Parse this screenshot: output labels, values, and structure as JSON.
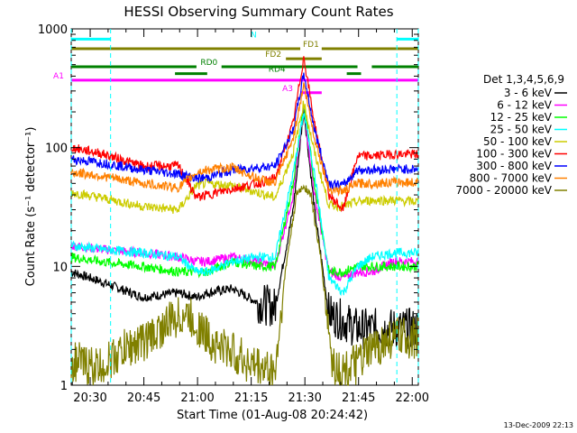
{
  "chart_data": {
    "type": "line",
    "title": "HESSI Observing Summary Count Rates",
    "xlabel": "Start Time (01-Aug-08 20:24:42)",
    "ylabel": "Count Rate (s⁻¹ detector⁻¹)",
    "ylog": true,
    "ylim": [
      1,
      1000
    ],
    "xlim_minutes": [
      0,
      97
    ],
    "x_ticks": [
      {
        "label": "20:30",
        "t": 5.3
      },
      {
        "label": "20:45",
        "t": 20.3
      },
      {
        "label": "21:00",
        "t": 35.3
      },
      {
        "label": "21:15",
        "t": 50.3
      },
      {
        "label": "21:30",
        "t": 65.3
      },
      {
        "label": "21:45",
        "t": 80.3
      },
      {
        "label": "22:00",
        "t": 95.3
      }
    ],
    "y_ticks": [
      {
        "label": "1",
        "v": 1
      },
      {
        "label": "10",
        "v": 10
      },
      {
        "label": "100",
        "v": 100
      },
      {
        "label": "1000",
        "v": 1000
      }
    ],
    "legend": {
      "title": "Det 1,3,4,5,6,9",
      "position": "right"
    },
    "series": [
      {
        "name": "3 - 6 keV",
        "color": "#000000",
        "points": [
          [
            0,
            9
          ],
          [
            8,
            7.5
          ],
          [
            20,
            5.5
          ],
          [
            30,
            6
          ],
          [
            35,
            5.5
          ],
          [
            38,
            6
          ],
          [
            45,
            6.5
          ],
          [
            52,
            5
          ],
          [
            57,
            4.5
          ],
          [
            62,
            30
          ],
          [
            65,
            210
          ],
          [
            68,
            30
          ],
          [
            72,
            4
          ],
          [
            76,
            3.5
          ],
          [
            80,
            3
          ],
          [
            84,
            3
          ],
          [
            90,
            3
          ],
          [
            97,
            3
          ]
        ]
      },
      {
        "name": "6 - 12 keV",
        "color": "#ff00ff",
        "points": [
          [
            0,
            15
          ],
          [
            8,
            14
          ],
          [
            20,
            13
          ],
          [
            30,
            12
          ],
          [
            35,
            11
          ],
          [
            38,
            11
          ],
          [
            45,
            12
          ],
          [
            52,
            11
          ],
          [
            57,
            10
          ],
          [
            62,
            40
          ],
          [
            65,
            220
          ],
          [
            68,
            40
          ],
          [
            72,
            9
          ],
          [
            76,
            8
          ],
          [
            80,
            9
          ],
          [
            84,
            9
          ],
          [
            90,
            11
          ],
          [
            97,
            11
          ]
        ]
      },
      {
        "name": "12 - 25 keV",
        "color": "#00ff00",
        "points": [
          [
            0,
            12
          ],
          [
            8,
            11
          ],
          [
            20,
            10
          ],
          [
            30,
            9
          ],
          [
            35,
            9
          ],
          [
            38,
            9
          ],
          [
            45,
            11
          ],
          [
            52,
            10
          ],
          [
            57,
            10
          ],
          [
            62,
            50
          ],
          [
            65,
            230
          ],
          [
            68,
            50
          ],
          [
            72,
            9
          ],
          [
            76,
            9
          ],
          [
            80,
            10
          ],
          [
            84,
            10
          ],
          [
            90,
            10
          ],
          [
            97,
            10
          ]
        ]
      },
      {
        "name": "25 - 50 keV",
        "color": "#00ffff",
        "points": [
          [
            0,
            15
          ],
          [
            8,
            14
          ],
          [
            20,
            13
          ],
          [
            30,
            12
          ],
          [
            35,
            9
          ],
          [
            38,
            9
          ],
          [
            45,
            11
          ],
          [
            52,
            12
          ],
          [
            57,
            12
          ],
          [
            62,
            60
          ],
          [
            65,
            200
          ],
          [
            68,
            60
          ],
          [
            72,
            8
          ],
          [
            76,
            6
          ],
          [
            80,
            10
          ],
          [
            84,
            12
          ],
          [
            90,
            13
          ],
          [
            97,
            13
          ]
        ]
      },
      {
        "name": "50 - 100 keV",
        "color": "#cccc00",
        "points": [
          [
            0,
            42
          ],
          [
            8,
            38
          ],
          [
            20,
            32
          ],
          [
            30,
            30
          ],
          [
            35,
            48
          ],
          [
            38,
            50
          ],
          [
            45,
            48
          ],
          [
            52,
            42
          ],
          [
            57,
            38
          ],
          [
            62,
            90
          ],
          [
            65,
            240
          ],
          [
            68,
            90
          ],
          [
            72,
            33
          ],
          [
            76,
            32
          ],
          [
            80,
            35
          ],
          [
            84,
            36
          ],
          [
            90,
            36
          ],
          [
            97,
            35
          ]
        ]
      },
      {
        "name": "100 - 300 keV",
        "color": "#ff0000",
        "points": [
          [
            0,
            100
          ],
          [
            8,
            90
          ],
          [
            20,
            70
          ],
          [
            30,
            70
          ],
          [
            35,
            38
          ],
          [
            38,
            40
          ],
          [
            45,
            45
          ],
          [
            52,
            50
          ],
          [
            57,
            55
          ],
          [
            62,
            160
          ],
          [
            65,
            580
          ],
          [
            68,
            160
          ],
          [
            72,
            40
          ],
          [
            76,
            30
          ],
          [
            80,
            85
          ],
          [
            84,
            85
          ],
          [
            90,
            88
          ],
          [
            97,
            88
          ]
        ]
      },
      {
        "name": "300 - 800 keV",
        "color": "#0000ff",
        "points": [
          [
            0,
            80
          ],
          [
            8,
            75
          ],
          [
            20,
            65
          ],
          [
            30,
            60
          ],
          [
            35,
            55
          ],
          [
            38,
            56
          ],
          [
            45,
            65
          ],
          [
            52,
            68
          ],
          [
            57,
            70
          ],
          [
            62,
            140
          ],
          [
            65,
            420
          ],
          [
            68,
            140
          ],
          [
            72,
            50
          ],
          [
            76,
            48
          ],
          [
            80,
            65
          ],
          [
            84,
            65
          ],
          [
            90,
            66
          ],
          [
            97,
            66
          ]
        ]
      },
      {
        "name": "800 - 7000 keV",
        "color": "#ff8000",
        "points": [
          [
            0,
            62
          ],
          [
            8,
            58
          ],
          [
            20,
            50
          ],
          [
            30,
            46
          ],
          [
            35,
            62
          ],
          [
            38,
            65
          ],
          [
            45,
            68
          ],
          [
            52,
            55
          ],
          [
            57,
            50
          ],
          [
            62,
            120
          ],
          [
            65,
            340
          ],
          [
            68,
            120
          ],
          [
            72,
            45
          ],
          [
            76,
            43
          ],
          [
            80,
            50
          ],
          [
            84,
            50
          ],
          [
            90,
            51
          ],
          [
            97,
            51
          ]
        ]
      },
      {
        "name": "7000 - 20000 keV",
        "color": "#808000",
        "points": [
          [
            0,
            1.6
          ],
          [
            8,
            1.4
          ],
          [
            15,
            2
          ],
          [
            22,
            2.5
          ],
          [
            28,
            3.5
          ],
          [
            32,
            4
          ],
          [
            36,
            3
          ],
          [
            40,
            2.2
          ],
          [
            44,
            2
          ],
          [
            50,
            1.5
          ],
          [
            57,
            1.3
          ],
          [
            60,
            10
          ],
          [
            63,
            40
          ],
          [
            65,
            48
          ],
          [
            67,
            40
          ],
          [
            70,
            10
          ],
          [
            73,
            1.5
          ],
          [
            76,
            1.3
          ],
          [
            80,
            1.5
          ],
          [
            84,
            2
          ],
          [
            90,
            2.5
          ],
          [
            97,
            2.5
          ]
        ]
      }
    ],
    "flag_bars": [
      {
        "label": "N",
        "color": "#00ffff",
        "y": 820,
        "segments": [
          [
            0,
            11
          ],
          [
            91,
            97
          ]
        ]
      },
      {
        "label": "FD1",
        "color": "#808000",
        "y": 680,
        "segments": [
          [
            0,
            64
          ],
          [
            70,
            97
          ]
        ]
      },
      {
        "label": "FD2",
        "color": "#808000",
        "y": 560,
        "segments": [
          [
            60,
            70
          ]
        ]
      },
      {
        "label": "RD0",
        "color": "#008000",
        "y": 480,
        "segments": [
          [
            0,
            35
          ],
          [
            42,
            80
          ],
          [
            84,
            97
          ]
        ]
      },
      {
        "label": "RD4",
        "color": "#008000",
        "y": 420,
        "segments": [
          [
            29,
            38
          ],
          [
            77,
            81
          ]
        ]
      },
      {
        "label": "A1",
        "color": "#ff00ff",
        "y": 370,
        "segments": [
          [
            0,
            97
          ]
        ]
      },
      {
        "label": "A3",
        "color": "#ff00ff",
        "y": 290,
        "segments": [
          [
            64,
            70
          ]
        ]
      }
    ],
    "annotations": [
      {
        "text": "13-Dec-2009 22:13",
        "position": "bottom-right"
      }
    ],
    "grid": false
  }
}
